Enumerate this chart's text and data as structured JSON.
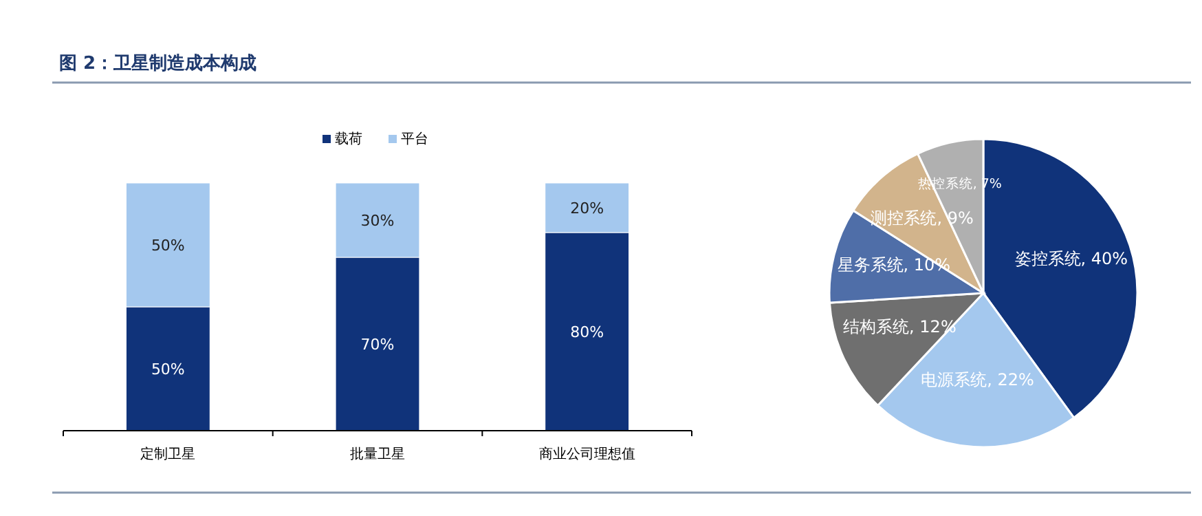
{
  "chart_data": [
    {
      "type": "bar",
      "title": "图 2：卫星制造成本构成",
      "categories": [
        "定制卫星",
        "批量卫星",
        "商业公司理想值"
      ],
      "stacked": true,
      "legend": "top",
      "series": [
        {
          "name": "载荷",
          "color": "#10337a",
          "values": [
            50,
            70,
            80
          ],
          "value_labels": [
            "50%",
            "70%",
            "80%"
          ]
        },
        {
          "name": "平台",
          "color": "#a4c8ee",
          "values": [
            50,
            30,
            20
          ],
          "value_labels": [
            "50%",
            "30%",
            "20%"
          ]
        }
      ]
    },
    {
      "type": "pie",
      "categories": [
        "姿控系统",
        "电源系统",
        "结构系统",
        "星务系统",
        "测控系统",
        "热控系统"
      ],
      "values": [
        40,
        22,
        12,
        10,
        9,
        7
      ],
      "colors": [
        "#10337a",
        "#a4c8ee",
        "#6f6f6f",
        "#4f6ea8",
        "#d2b48c",
        "#b0b0b0"
      ],
      "value_labels": [
        "40%",
        "22%",
        "12%",
        "10%",
        "9%",
        "7%"
      ]
    }
  ]
}
